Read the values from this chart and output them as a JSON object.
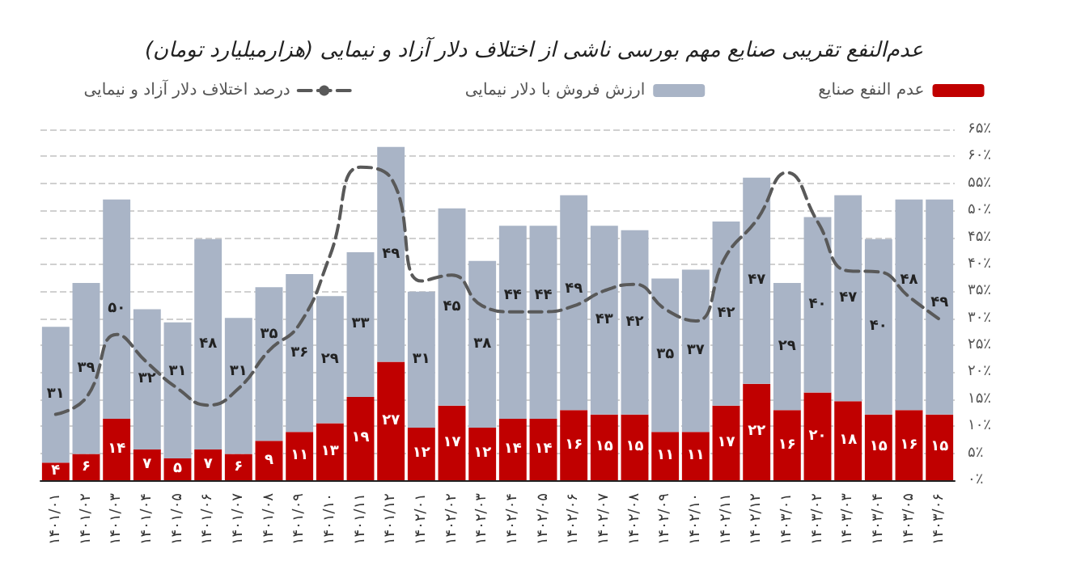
{
  "chart_data": {
    "type": "bar",
    "title": "عدم‌النفع تقریبی صنایع مهم بورسی ناشی از اختلاف دلار آزاد و نیمایی (هزارمیلیارد تومان)",
    "categories": [
      "۱۴۰۱/۰۱",
      "۱۴۰۱/۰۲",
      "۱۴۰۱/۰۳",
      "۱۴۰۱/۰۴",
      "۱۴۰۱/۰۵",
      "۱۴۰۱/۰۶",
      "۱۴۰۱/۰۷",
      "۱۴۰۱/۰۸",
      "۱۴۰۱/۰۹",
      "۱۴۰۱/۱۰",
      "۱۴۰۱/۱۱",
      "۱۴۰۱/۱۲",
      "۱۴۰۲/۰۱",
      "۱۴۰۲/۰۲",
      "۱۴۰۲/۰۳",
      "۱۴۰۲/۰۴",
      "۱۴۰۲/۰۵",
      "۱۴۰۲/۰۶",
      "۱۴۰۲/۰۷",
      "۱۴۰۲/۰۸",
      "۱۴۰۲/۰۹",
      "۱۴۰۲/۱۰",
      "۱۴۰۲/۱۱",
      "۱۴۰۲/۱۲",
      "۱۴۰۳/۰۱",
      "۱۴۰۳/۰۲",
      "۱۴۰۳/۰۳",
      "۱۴۰۳/۰۴",
      "۱۴۰۳/۰۵",
      "۱۴۰۳/۰۶"
    ],
    "stacked": true,
    "series": [
      {
        "name": "عدم النفع صنایع",
        "color": "#c00000",
        "data_labels": true,
        "values": [
          4,
          6,
          14,
          7,
          5,
          7,
          6,
          9,
          11,
          13,
          19,
          27,
          12,
          17,
          12,
          14,
          14,
          16,
          15,
          15,
          11,
          11,
          17,
          22,
          16,
          20,
          18,
          15,
          16,
          15
        ],
        "value_labels": [
          "۴",
          "۶",
          "۱۴",
          "۷",
          "۵",
          "۷",
          "۶",
          "۹",
          "۱۱",
          "۱۳",
          "۱۹",
          "۲۷",
          "۱۲",
          "۱۷",
          "۱۲",
          "۱۴",
          "۱۴",
          "۱۶",
          "۱۵",
          "۱۵",
          "۱۱",
          "۱۱",
          "۱۷",
          "۲۲",
          "۱۶",
          "۲۰",
          "۱۸",
          "۱۵",
          "۱۶",
          "۱۵"
        ]
      },
      {
        "name": "ارزش فروش با دلار نیمایی",
        "color": "#a9b4c6",
        "data_labels": true,
        "values": [
          31,
          39,
          50,
          32,
          31,
          48,
          31,
          35,
          36,
          29,
          33,
          49,
          31,
          45,
          38,
          44,
          44,
          49,
          43,
          42,
          35,
          37,
          42,
          47,
          29,
          40,
          47,
          40,
          48,
          49
        ],
        "value_labels": [
          "۳۱",
          "۳۹",
          "۵۰",
          "۳۲",
          "۳۱",
          "۴۸",
          "۳۱",
          "۳۵",
          "۳۶",
          "۲۹",
          "۳۳",
          "۴۹",
          "۳۱",
          "۴۵",
          "۳۸",
          "۴۴",
          "۴۴",
          "۴۹",
          "۴۳",
          "۴۲",
          "۳۵",
          "۳۷",
          "۴۲",
          "۴۷",
          "۲۹",
          "۴۰",
          "۴۷",
          "۴۰",
          "۴۸",
          "۴۹"
        ]
      },
      {
        "name": "درصد اختلاف دلار آزاد و نیمایی",
        "type": "line",
        "axis": "y2",
        "color": "#595959",
        "line_style": "dashed",
        "marker": "none",
        "values": [
          12.2,
          15.3,
          27,
          21.8,
          17,
          13.9,
          17,
          24,
          28.9,
          41.6,
          58,
          56,
          36.9,
          38,
          32.3,
          31.2,
          31.2,
          32.3,
          35.1,
          36.3,
          31.7,
          29.5,
          41.6,
          48.2,
          57,
          47.9,
          38.8,
          38.6,
          34,
          29.8
        ]
      }
    ],
    "y2lim": [
      0,
      65
    ],
    "y2ticks": [
      {
        "value": 0,
        "label": "۰٪"
      },
      {
        "value": 5,
        "label": "۵٪"
      },
      {
        "value": 10,
        "label": "۱۰٪"
      },
      {
        "value": 15,
        "label": "۱۵٪"
      },
      {
        "value": 20,
        "label": "۲۰٪"
      },
      {
        "value": 25,
        "label": "۲۵٪"
      },
      {
        "value": 30,
        "label": "۳۰٪"
      },
      {
        "value": 35,
        "label": "۳۵٪"
      },
      {
        "value": 40,
        "label": "۴۰٪"
      },
      {
        "value": 45,
        "label": "۴۵٪"
      },
      {
        "value": 50,
        "label": "۵۰٪"
      },
      {
        "value": 55,
        "label": "۵۵٪"
      },
      {
        "value": 60,
        "label": "۶۰٪"
      },
      {
        "value": 65,
        "label": "۶۵٪"
      }
    ],
    "grid": "y",
    "legend": "top"
  }
}
